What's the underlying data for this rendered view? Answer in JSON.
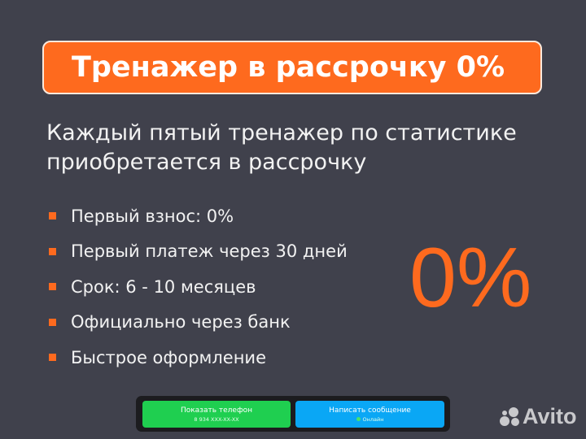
{
  "title": "Тренажер в рассрочку 0%",
  "subtitle_lines": [
    "Каждый пятый тренажер по статистике",
    "приобретается в рассрочку"
  ],
  "features": [
    "Первый взнос:  0%",
    "Первый платеж через 30 дней",
    "Срок:  6 - 10 месяцев",
    "Официально через банк",
    "Быстрое оформление"
  ],
  "big_percent": "0%",
  "contact_widget": {
    "phone_button": {
      "label": "Показать телефон",
      "phone": "8 934 XXX-XX-XX"
    },
    "message_button": {
      "label": "Написать сообщение",
      "status": "Онлайн"
    }
  },
  "logo": {
    "text": "Avito"
  },
  "colors": {
    "accent": "#fe6a1e",
    "background": "#40414c",
    "green": "#1fcf50",
    "blue": "#0aa7f5"
  }
}
